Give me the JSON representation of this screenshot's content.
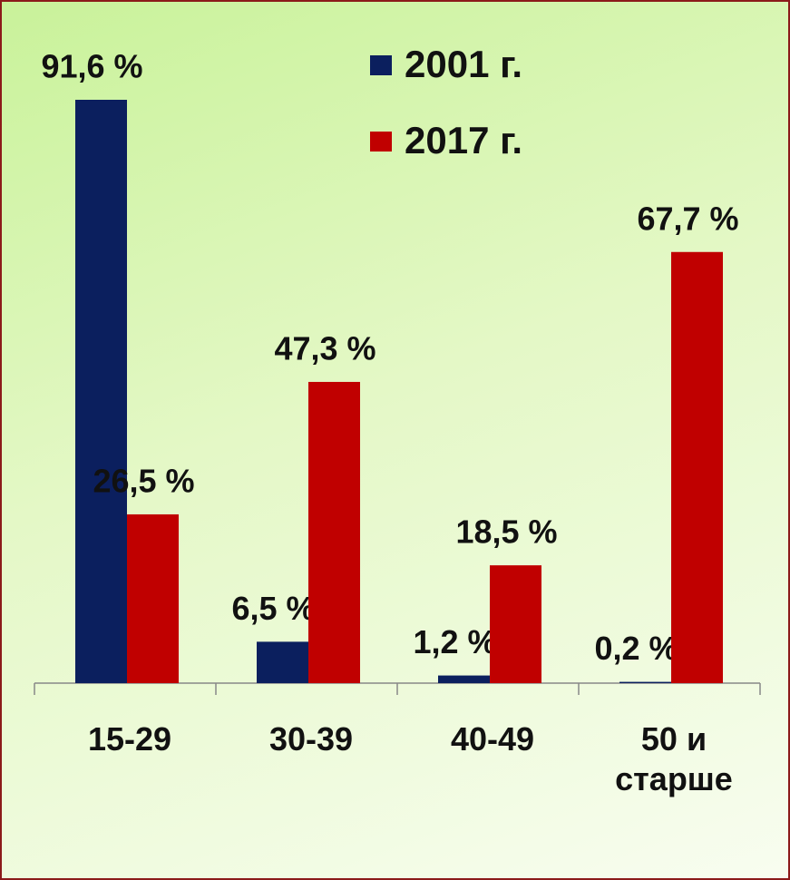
{
  "chart_data": {
    "type": "bar",
    "categories": [
      "15-29",
      "30-39",
      "40-49",
      "50 и старше"
    ],
    "series": [
      {
        "name": "2001 г.",
        "color": "#0b1f5e",
        "values": [
          91.6,
          6.5,
          1.2,
          0.2
        ],
        "value_labels": [
          "91,6 %",
          "6,5 %",
          "1,2 %",
          "0,2 %"
        ]
      },
      {
        "name": "2017 г.",
        "color": "#c00000",
        "values": [
          26.5,
          47.3,
          18.5,
          67.7
        ],
        "value_labels": [
          "26,5 %",
          "47,3 %",
          "18,5 %",
          "67,7 %"
        ]
      }
    ],
    "legend": "top-right"
  }
}
